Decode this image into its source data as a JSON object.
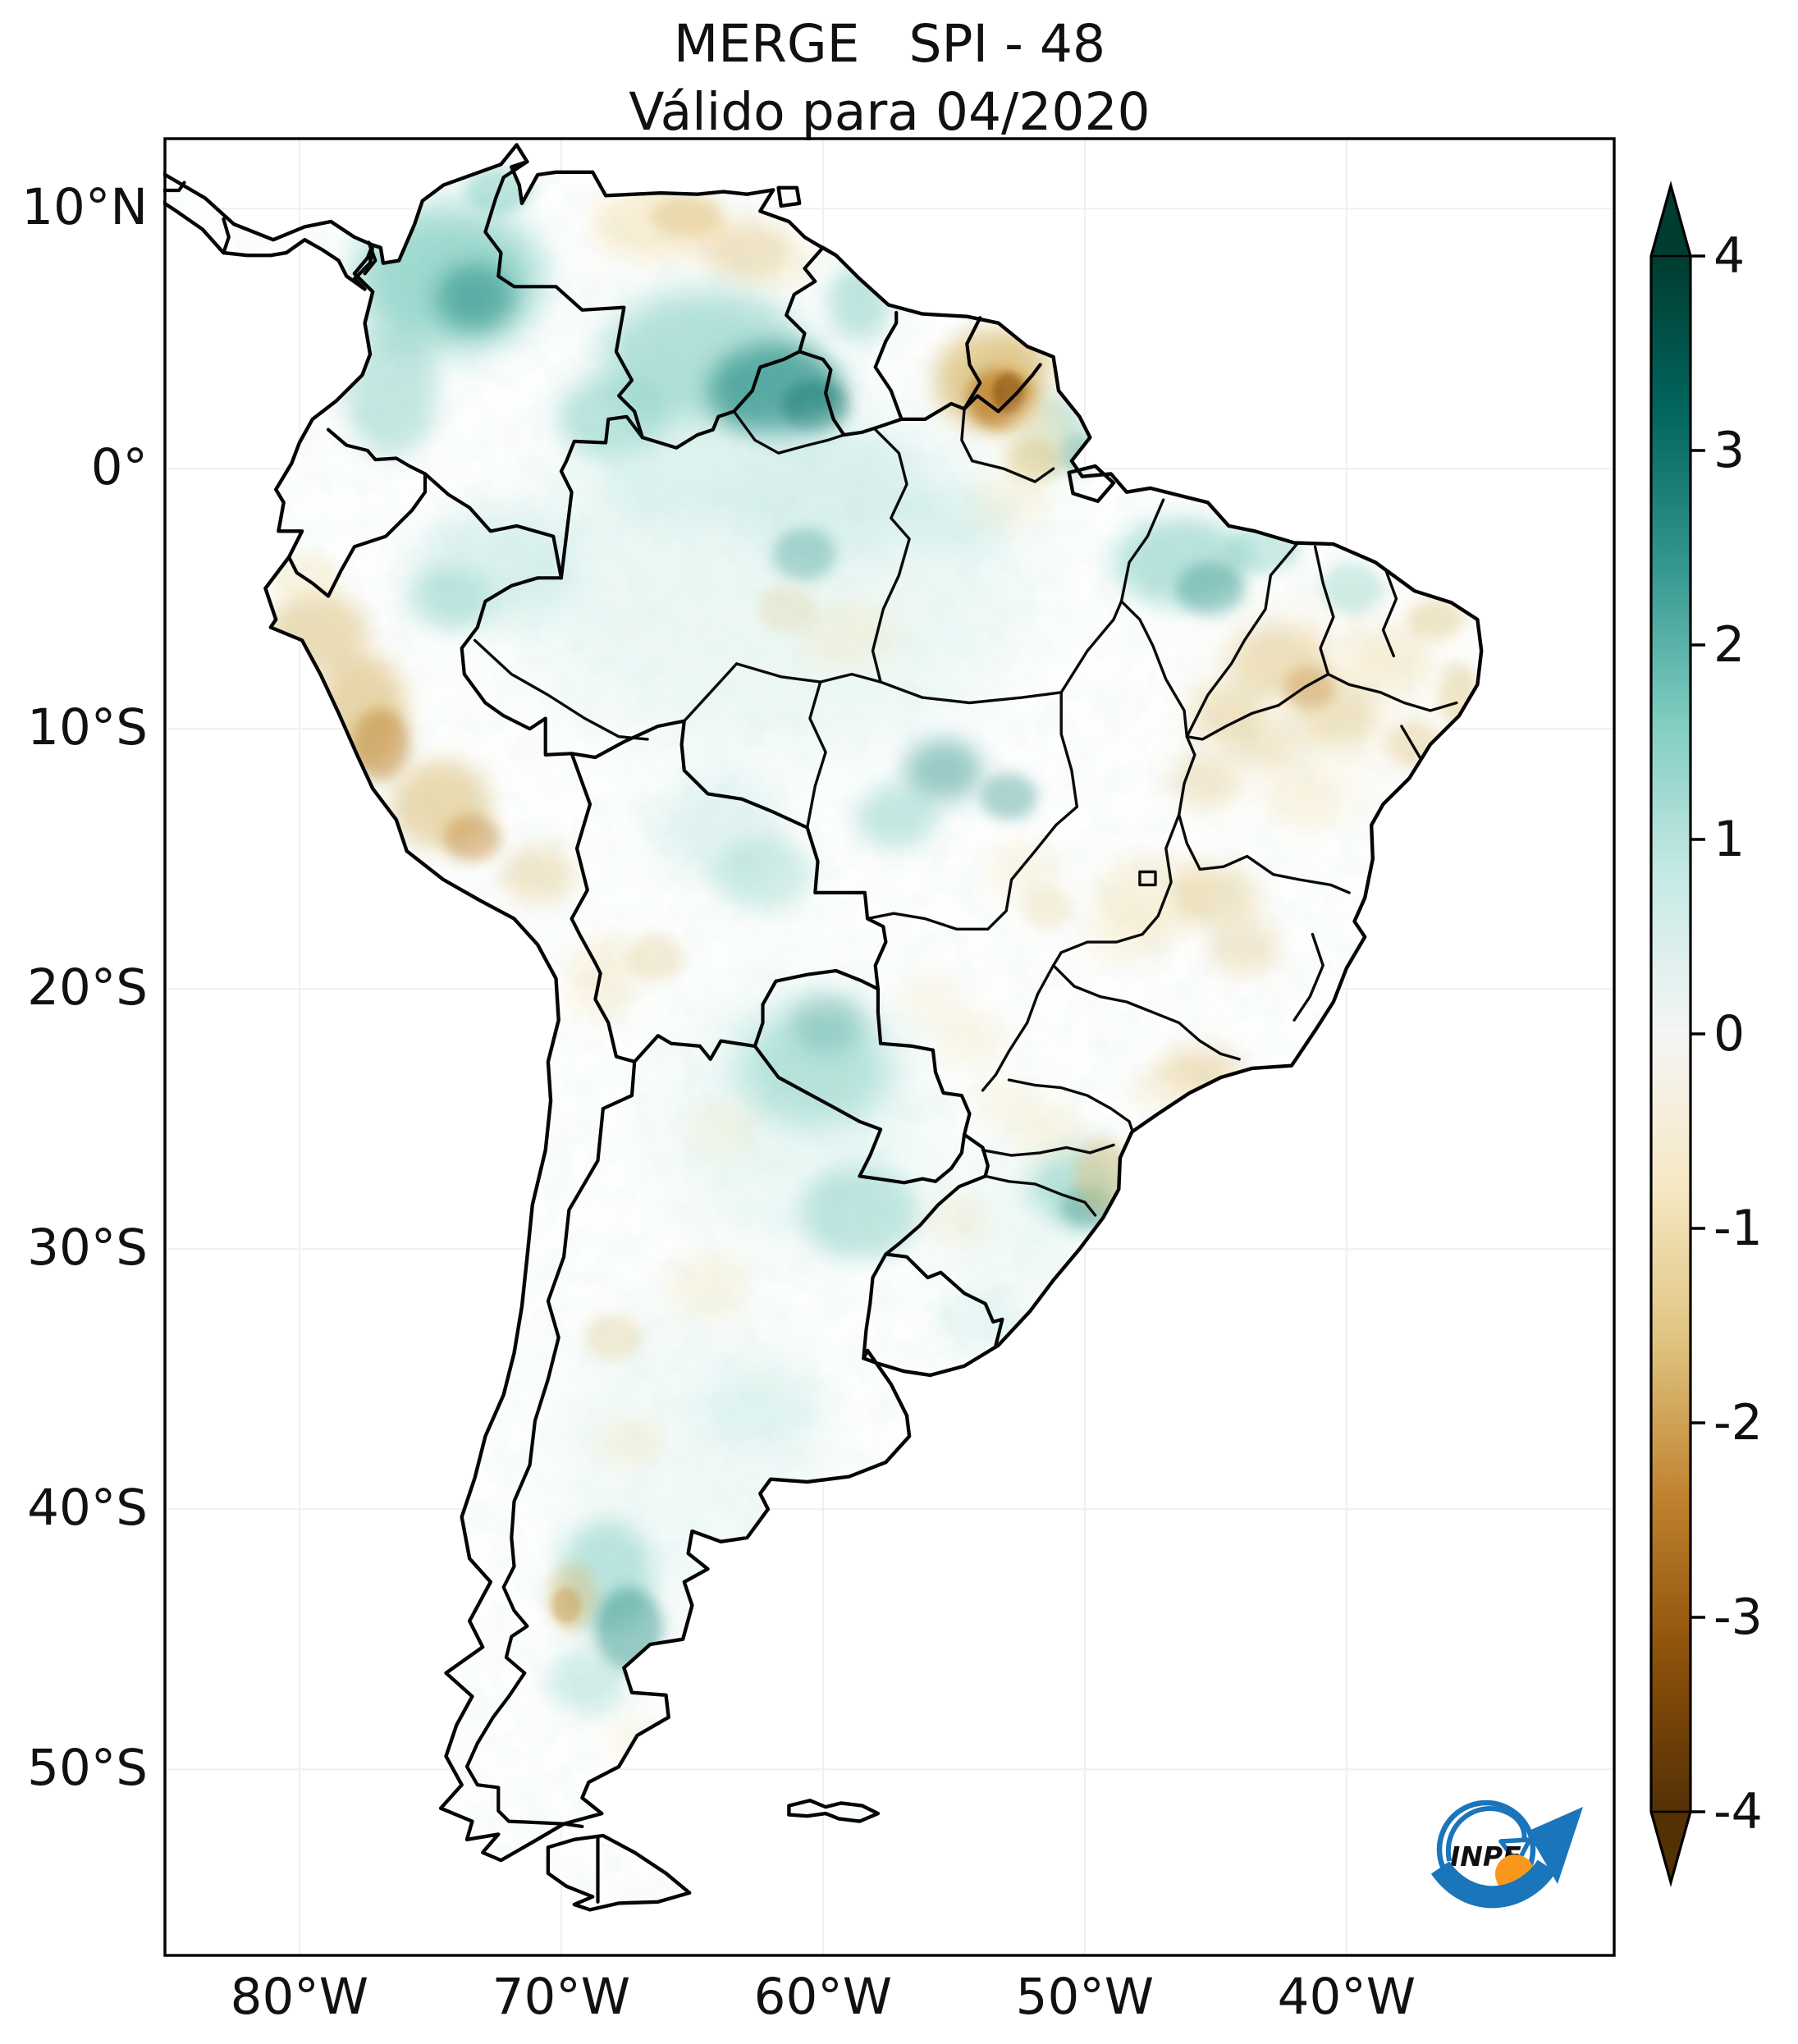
{
  "title": {
    "line1": "MERGE   SPI - 48",
    "line2": "Válido para 04/2020"
  },
  "axes": {
    "y_ticks": [
      {
        "label": "10°N",
        "lat": 10
      },
      {
        "label": "0°",
        "lat": 0
      },
      {
        "label": "10°S",
        "lat": -10
      },
      {
        "label": "20°S",
        "lat": -20
      },
      {
        "label": "30°S",
        "lat": -30
      },
      {
        "label": "40°S",
        "lat": -40
      },
      {
        "label": "50°S",
        "lat": -50
      }
    ],
    "x_ticks": [
      {
        "label": "80°W",
        "lon": -80
      },
      {
        "label": "70°W",
        "lon": -70
      },
      {
        "label": "60°W",
        "lon": -60
      },
      {
        "label": "50°W",
        "lon": -50
      },
      {
        "label": "40°W",
        "lon": -40
      }
    ]
  },
  "colorbar": {
    "ticks": [
      {
        "label": "4",
        "value": 4
      },
      {
        "label": "3",
        "value": 3
      },
      {
        "label": "2",
        "value": 2
      },
      {
        "label": "1",
        "value": 1
      },
      {
        "label": "0",
        "value": 0
      },
      {
        "label": "-1",
        "value": -1
      },
      {
        "label": "-2",
        "value": -2
      },
      {
        "label": "-3",
        "value": -3
      },
      {
        "label": "-4",
        "value": -4
      }
    ],
    "min": -4,
    "max": 4,
    "extend": "both",
    "palette_name": "BrBG",
    "palette_top_to_bottom": [
      "#003c30",
      "#01665e",
      "#35978f",
      "#80cdc1",
      "#c7eae5",
      "#f5f5f5",
      "#f6e8c3",
      "#dfc27d",
      "#bf812d",
      "#8c510a",
      "#543005"
    ]
  },
  "logo": {
    "text": "INPE",
    "blue": "#1a75bb",
    "orange": "#f7981d",
    "text_color": "#101010"
  },
  "chart_data": {
    "type": "heatmap",
    "title": "MERGE   SPI - 48",
    "subtitle": "Válido para 04/2020",
    "variable": "SPI-48",
    "region": "South America",
    "x_axis": {
      "kind": "longitude",
      "tick_labels": [
        "80°W",
        "70°W",
        "60°W",
        "50°W",
        "40°W"
      ]
    },
    "y_axis": {
      "kind": "latitude",
      "tick_labels": [
        "10°N",
        "0°",
        "10°S",
        "20°S",
        "30°S",
        "40°S",
        "50°S"
      ]
    },
    "colorbar": {
      "range": [
        -4,
        4
      ],
      "ticks": [
        4,
        3,
        2,
        1,
        0,
        -1,
        -2,
        -3,
        -4
      ],
      "colormap": "BrBG",
      "extend": "both",
      "wet_color_direction": "teal/green = positive (wet)",
      "dry_color_direction": "brown = negative (dry)"
    },
    "wet_anomaly_regions": [
      "central and eastern Colombia / western Venezuela (SPI ~ +1 to +2)",
      "Roraima and Guyana border area, northern Brazil (SPI ~ +2)",
      "eastern Pará / Maranhão coast (SPI ~ +1 to +2)",
      "scattered spots in central Mato Grosso (SPI ~ +2)",
      "Paraguay and Chaco / northeastern Argentina (SPI ~ +1)",
      "Santa Catarina coast, southern Brazil (SPI ~ +1 to +2)",
      "central Patagonia, Argentina (SPI ~ +1 to +2)"
    ],
    "dry_anomaly_regions": [
      "Suriname / French Guiana / Amapá (strong, SPI ~ -2 to -3)",
      "northern Venezuela coast (SPI ~ -1)",
      "Peruvian Andes band (SPI ~ -1 to -2)",
      "Bolivian Altiplano spots (SPI ~ -1)",
      "interior northeastern Brazil (SPI ~ -1)",
      "Minas Gerais / Goiás patches (SPI ~ -1)",
      "São Paulo and Santa Catarina coastal strips (SPI ~ -1 to -2)",
      "scattered western Argentina foothills (SPI ~ -1 to -2)"
    ]
  }
}
